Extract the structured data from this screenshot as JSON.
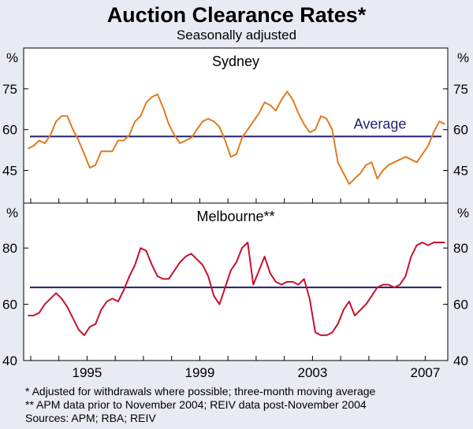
{
  "header": {
    "title": "Auction Clearance Rates*",
    "subtitle": "Seasonally adjusted"
  },
  "footnotes": [
    "*   Adjusted for withdrawals where possible; three-month moving average",
    "** APM data prior to November 2004; REIV data post-November 2004",
    "Sources: APM; RBA; REIV"
  ],
  "chart_data": [
    {
      "type": "line",
      "panel_title": "Sydney",
      "y_unit": "%",
      "yticks": [
        45,
        60,
        75
      ],
      "ylim": [
        33,
        90
      ],
      "xlim": [
        1992.75,
        2007.8
      ],
      "xticks": [
        "1995",
        "1999",
        "2003",
        "2007"
      ],
      "average_label": "Average",
      "average": 57.5,
      "colors": {
        "series": "#e07b20",
        "average": "#1f1f6e"
      },
      "series": [
        {
          "x": [
            1992.9,
            1993.1,
            1993.3,
            1993.5,
            1993.7,
            1993.9,
            1994.1,
            1994.3,
            1994.5,
            1994.7,
            1994.9,
            1995.1,
            1995.3,
            1995.5,
            1995.7,
            1995.9,
            1996.1,
            1996.3,
            1996.5,
            1996.7,
            1996.9,
            1997.1,
            1997.3,
            1997.5,
            1997.7,
            1997.9,
            1998.1,
            1998.3,
            1998.5,
            1998.7,
            1998.9,
            1999.1,
            1999.3,
            1999.5,
            1999.7,
            1999.9,
            2000.1,
            2000.3,
            2000.5,
            2000.7,
            2000.9,
            2001.1,
            2001.3,
            2001.5,
            2001.7,
            2001.9,
            2002.1,
            2002.3,
            2002.5,
            2002.7,
            2002.9,
            2003.1,
            2003.3,
            2003.5,
            2003.7,
            2003.9,
            2004.1,
            2004.3,
            2004.5,
            2004.7,
            2004.9,
            2005.1,
            2005.3,
            2005.5,
            2005.7,
            2005.9,
            2006.1,
            2006.3,
            2006.5,
            2006.7,
            2006.9,
            2007.1,
            2007.3,
            2007.5,
            2007.7
          ],
          "values": [
            53,
            54,
            56,
            55,
            58,
            63,
            65,
            65,
            60,
            56,
            51,
            46,
            47,
            52,
            52,
            52,
            56,
            56,
            58,
            63,
            65,
            70,
            72,
            73,
            68,
            62,
            58,
            55,
            56,
            57,
            60,
            63,
            64,
            63,
            61,
            56,
            50,
            51,
            57,
            60,
            63,
            66,
            70,
            69,
            67,
            71,
            74,
            71,
            66,
            62,
            59,
            60,
            65,
            64,
            60,
            48,
            44,
            40,
            42,
            44,
            47,
            48,
            42,
            45,
            47,
            48,
            49,
            50,
            49,
            48,
            51,
            54,
            59,
            63,
            62
          ]
        }
      ]
    },
    {
      "type": "line",
      "panel_title": "Melbourne**",
      "y_unit": "%",
      "yticks": [
        40,
        60,
        80
      ],
      "ylim": [
        40,
        96
      ],
      "xlim": [
        1992.75,
        2007.8
      ],
      "xticks": [
        "1995",
        "1999",
        "2003",
        "2007"
      ],
      "average": 66,
      "colors": {
        "series": "#c8102e",
        "average": "#1f1f6e"
      },
      "series": [
        {
          "x": [
            1992.9,
            1993.1,
            1993.3,
            1993.5,
            1993.7,
            1993.9,
            1994.1,
            1994.3,
            1994.5,
            1994.7,
            1994.9,
            1995.1,
            1995.3,
            1995.5,
            1995.7,
            1995.9,
            1996.1,
            1996.3,
            1996.5,
            1996.7,
            1996.9,
            1997.1,
            1997.3,
            1997.5,
            1997.7,
            1997.9,
            1998.1,
            1998.3,
            1998.5,
            1998.7,
            1998.9,
            1999.1,
            1999.3,
            1999.5,
            1999.7,
            1999.9,
            2000.1,
            2000.3,
            2000.5,
            2000.7,
            2000.9,
            2001.1,
            2001.3,
            2001.5,
            2001.7,
            2001.9,
            2002.1,
            2002.3,
            2002.5,
            2002.7,
            2002.9,
            2003.1,
            2003.3,
            2003.5,
            2003.7,
            2003.9,
            2004.1,
            2004.3,
            2004.5,
            2004.7,
            2004.9,
            2005.1,
            2005.3,
            2005.5,
            2005.7,
            2005.9,
            2006.1,
            2006.3,
            2006.5,
            2006.7,
            2006.9,
            2007.1,
            2007.3,
            2007.5,
            2007.7
          ],
          "values": [
            56,
            56,
            57,
            60,
            62,
            64,
            62,
            59,
            55,
            51,
            49,
            52,
            53,
            58,
            61,
            62,
            61,
            65,
            70,
            74,
            80,
            79,
            74,
            70,
            69,
            69,
            72,
            75,
            77,
            78,
            76,
            74,
            70,
            63,
            60,
            66,
            72,
            75,
            80,
            82,
            67,
            72,
            77,
            71,
            68,
            67,
            68,
            68,
            67,
            69,
            62,
            50,
            49,
            49,
            50,
            53,
            58,
            61,
            56,
            58,
            60,
            63,
            66,
            67,
            67,
            66,
            67,
            70,
            77,
            81,
            82,
            81,
            82,
            82,
            82
          ]
        }
      ]
    }
  ]
}
